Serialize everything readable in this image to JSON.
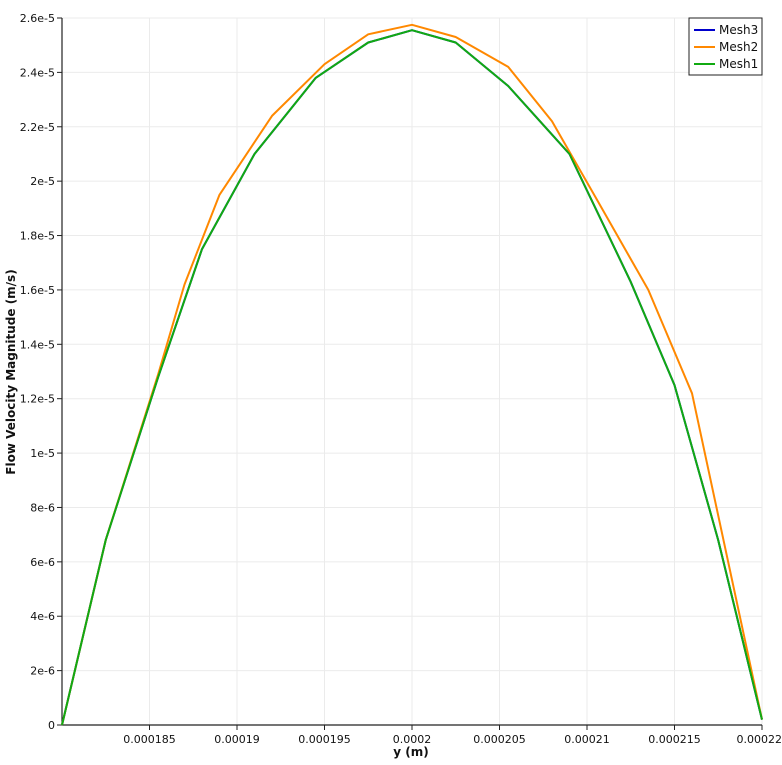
{
  "chart_data": {
    "type": "line",
    "title": "",
    "xlabel": "y (m)",
    "ylabel": "Flow Velocity Magnitude (m/s)",
    "xlim": [
      0.00018,
      0.00022
    ],
    "ylim": [
      0,
      2.6e-05
    ],
    "x_ticks": [
      {
        "value": 0.000185,
        "label": "0.000185"
      },
      {
        "value": 0.00019,
        "label": "0.00019"
      },
      {
        "value": 0.000195,
        "label": "0.000195"
      },
      {
        "value": 0.0002,
        "label": "0.0002"
      },
      {
        "value": 0.000205,
        "label": "0.000205"
      },
      {
        "value": 0.00021,
        "label": "0.00021"
      },
      {
        "value": 0.000215,
        "label": "0.000215"
      },
      {
        "value": 0.00022,
        "label": "0.00022"
      }
    ],
    "y_ticks": [
      {
        "value": 0,
        "label": "0"
      },
      {
        "value": 2e-06,
        "label": "2e-6"
      },
      {
        "value": 4e-06,
        "label": "4e-6"
      },
      {
        "value": 6e-06,
        "label": "6e-6"
      },
      {
        "value": 8e-06,
        "label": "8e-6"
      },
      {
        "value": 1e-05,
        "label": "1e-5"
      },
      {
        "value": 1.2e-05,
        "label": "1.2e-5"
      },
      {
        "value": 1.4e-05,
        "label": "1.4e-5"
      },
      {
        "value": 1.6e-05,
        "label": "1.6e-5"
      },
      {
        "value": 1.8e-05,
        "label": "1.8e-5"
      },
      {
        "value": 2e-05,
        "label": "2e-5"
      },
      {
        "value": 2.2e-05,
        "label": "2.2e-5"
      },
      {
        "value": 2.4e-05,
        "label": "2.4e-5"
      },
      {
        "value": 2.6e-05,
        "label": "2.6e-5"
      }
    ],
    "grid": true,
    "legend": "top-right",
    "series": [
      {
        "name": "Mesh3",
        "color": "#0000cc",
        "x": [
          0.00018,
          0.0001825,
          0.0001855,
          0.000188,
          0.000191,
          0.0001945,
          0.0001975,
          0.0002,
          0.0002025,
          0.0002055,
          0.000209,
          0.0002125,
          0.000215,
          0.0002175,
          0.00022
        ],
        "y": [
          0,
          6.8e-06,
          1.28e-05,
          1.75e-05,
          2.1e-05,
          2.38e-05,
          2.51e-05,
          2.555e-05,
          2.51e-05,
          2.35e-05,
          2.1e-05,
          1.63e-05,
          1.25e-05,
          6.8e-06,
          2e-07
        ]
      },
      {
        "name": "Mesh2",
        "color": "#ff8800",
        "x": [
          0.00018,
          0.0001825,
          0.0001855,
          0.000187,
          0.000189,
          0.000192,
          0.000195,
          0.0001975,
          0.0002,
          0.0002025,
          0.0002055,
          0.000208,
          0.0002105,
          0.0002135,
          0.000216,
          0.00022
        ],
        "y": [
          0,
          6.8e-06,
          1.29e-05,
          1.62e-05,
          1.95e-05,
          2.24e-05,
          2.43e-05,
          2.54e-05,
          2.575e-05,
          2.53e-05,
          2.42e-05,
          2.22e-05,
          1.94e-05,
          1.6e-05,
          1.22e-05,
          2e-07
        ]
      },
      {
        "name": "Mesh1",
        "color": "#11aa11",
        "x": [
          0.00018,
          0.0001825,
          0.0001855,
          0.000188,
          0.000191,
          0.0001945,
          0.0001975,
          0.0002,
          0.0002025,
          0.0002055,
          0.000209,
          0.0002125,
          0.000215,
          0.0002175,
          0.00022
        ],
        "y": [
          0,
          6.8e-06,
          1.28e-05,
          1.75e-05,
          2.1e-05,
          2.38e-05,
          2.51e-05,
          2.555e-05,
          2.51e-05,
          2.35e-05,
          2.1e-05,
          1.63e-05,
          1.25e-05,
          6.8e-06,
          2e-07
        ]
      }
    ]
  }
}
